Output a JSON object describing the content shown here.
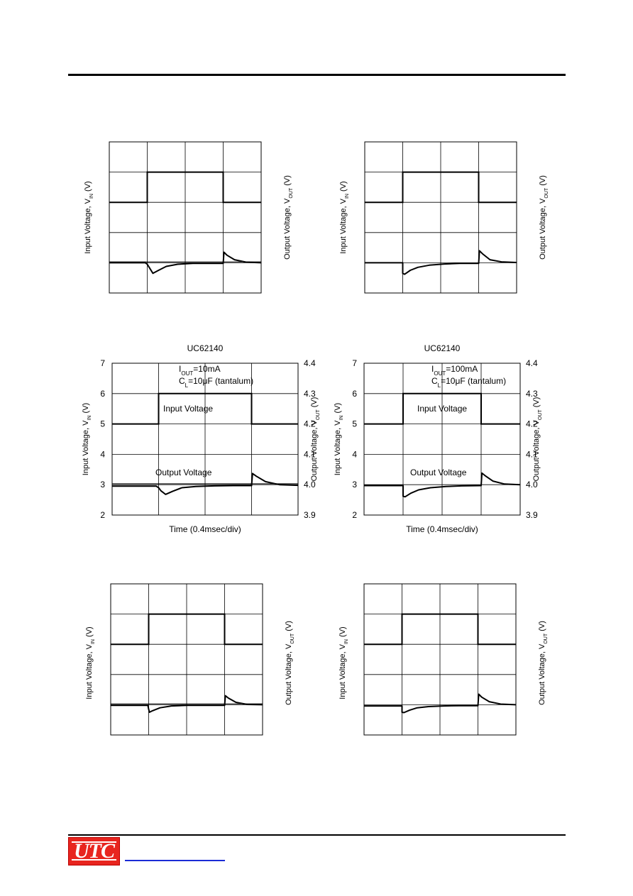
{
  "logo": {
    "text": "UTC"
  },
  "chart_data": [
    {
      "type": "line",
      "title": "",
      "subtitle": "",
      "xlabel": "",
      "ylabel_left": "Input Voltage, V",
      "ylabel_left_sub": "IN",
      "ylabel_left_tail": " (V)",
      "ylabel_right": "Output Voltage, V",
      "ylabel_right_sub": "OUT",
      "ylabel_right_tail": " (V)",
      "show_ticks": false,
      "ylim_left": [
        2,
        7
      ],
      "ylim_right": [
        3.9,
        4.4
      ],
      "x_divisions": 4,
      "grid": true,
      "input_voltage": {
        "name": "",
        "x": [
          0,
          1,
          1,
          3,
          3,
          4
        ],
        "y": [
          5,
          5,
          6,
          6,
          5,
          5
        ]
      },
      "output_voltage": {
        "name": "",
        "x": [
          0,
          0.95,
          1.0,
          1.05,
          1.15,
          1.3,
          1.5,
          1.8,
          2.2,
          2.6,
          3.0,
          3.02,
          3.1,
          3.3,
          3.6,
          4.0
        ],
        "y": [
          4.0,
          4.0,
          3.995,
          3.985,
          3.965,
          3.975,
          3.988,
          3.995,
          3.998,
          3.998,
          3.998,
          4.035,
          4.025,
          4.01,
          4.002,
          4.0
        ]
      },
      "output_baseline": 4.003
    },
    {
      "type": "line",
      "title": "",
      "subtitle": "",
      "xlabel": "",
      "ylabel_left": "Input Voltage, V",
      "ylabel_left_sub": "IN",
      "ylabel_left_tail": " (V)",
      "ylabel_right": "Output Voltage, V",
      "ylabel_right_sub": "OUT",
      "ylabel_right_tail": " (V)",
      "show_ticks": false,
      "ylim_left": [
        2,
        7
      ],
      "ylim_right": [
        3.9,
        4.4
      ],
      "x_divisions": 4,
      "grid": true,
      "input_voltage": {
        "name": "",
        "x": [
          0,
          1,
          1,
          3,
          3,
          4
        ],
        "y": [
          5,
          5,
          6,
          6,
          5,
          5
        ]
      },
      "output_voltage": {
        "name": "",
        "x": [
          0,
          1.0,
          1.0,
          1.05,
          1.2,
          1.4,
          1.7,
          2.1,
          2.5,
          3.0,
          3.02,
          3.1,
          3.3,
          3.6,
          4.0
        ],
        "y": [
          4.0,
          4.0,
          3.965,
          3.962,
          3.975,
          3.985,
          3.992,
          3.996,
          3.998,
          3.998,
          4.04,
          4.03,
          4.01,
          4.003,
          4.001
        ]
      },
      "output_baseline": null
    },
    {
      "type": "line",
      "title": "UC62140",
      "subtitle": "",
      "xlabel": "Time (0.4msec/div)",
      "ylabel_left": "Input Voltage, V",
      "ylabel_left_sub": "IN",
      "ylabel_left_tail": " (V)",
      "ylabel_right": "Output Voltage, V",
      "ylabel_right_sub": "OUT",
      "ylabel_right_tail": " (V)",
      "show_ticks": true,
      "yticks_left": [
        "2",
        "3",
        "4",
        "5",
        "6",
        "7"
      ],
      "yticks_right": [
        "3.9",
        "4.0",
        "4.1",
        "4.2",
        "4.3",
        "4.4"
      ],
      "ylim_left": [
        2,
        7
      ],
      "ylim_right": [
        3.9,
        4.4
      ],
      "x_divisions": 4,
      "grid": true,
      "annotation": {
        "line1_pre": "I",
        "line1_sub": "OUT",
        "line1_post": "=10mA",
        "line2_pre": "C",
        "line2_sub": "L",
        "line2_post": "=10μF (tantalum)"
      },
      "input_label": "Input Voltage",
      "output_label": "Output Voltage",
      "input_voltage": {
        "name": "Input Voltage",
        "x": [
          0,
          1,
          1,
          3,
          3,
          4
        ],
        "y": [
          5,
          5,
          6,
          6,
          5,
          5
        ]
      },
      "output_voltage": {
        "name": "Output Voltage",
        "x": [
          0,
          0.95,
          1.0,
          1.05,
          1.15,
          1.3,
          1.5,
          1.8,
          2.2,
          2.6,
          3.0,
          3.02,
          3.1,
          3.3,
          3.6,
          4.0
        ],
        "y": [
          3.995,
          3.995,
          3.99,
          3.98,
          3.968,
          3.978,
          3.99,
          3.994,
          3.996,
          3.997,
          3.997,
          4.037,
          4.028,
          4.01,
          4.0,
          3.998
        ]
      },
      "output_baseline": 4.003
    },
    {
      "type": "line",
      "title": "UC62140",
      "subtitle": "",
      "xlabel": "Time (0.4msec/div)",
      "ylabel_left": "Input Voltage, V",
      "ylabel_left_sub": "IN",
      "ylabel_left_tail": " (V)",
      "ylabel_right": "Output Voltage, V",
      "ylabel_right_sub": "OUT",
      "ylabel_right_tail": " (V)",
      "show_ticks": true,
      "yticks_left": [
        "2",
        "3",
        "4",
        "5",
        "6",
        "7"
      ],
      "yticks_right": [
        "3.9",
        "4.0",
        "4.1",
        "4.2",
        "4.3",
        "4.4"
      ],
      "ylim_left": [
        2,
        7
      ],
      "ylim_right": [
        3.9,
        4.4
      ],
      "x_divisions": 4,
      "grid": true,
      "annotation": {
        "line1_pre": "I",
        "line1_sub": "OUT",
        "line1_post": "=100mA",
        "line2_pre": "C",
        "line2_sub": "L",
        "line2_post": "=10μF (tantalum)"
      },
      "input_label": "Input Voltage",
      "output_label": "Output Voltage",
      "input_voltage": {
        "name": "Input Voltage",
        "x": [
          0,
          1,
          1,
          3,
          3,
          4
        ],
        "y": [
          5,
          5,
          6,
          6,
          5,
          5
        ]
      },
      "output_voltage": {
        "name": "Output Voltage",
        "x": [
          0,
          1.0,
          1.0,
          1.05,
          1.2,
          1.4,
          1.7,
          2.1,
          2.5,
          3.0,
          3.02,
          3.1,
          3.3,
          3.6,
          4.0
        ],
        "y": [
          3.997,
          3.997,
          3.962,
          3.96,
          3.972,
          3.983,
          3.99,
          3.994,
          3.996,
          3.997,
          4.038,
          4.03,
          4.012,
          4.002,
          4.0
        ]
      },
      "output_baseline": null
    },
    {
      "type": "line",
      "title": "",
      "subtitle": "",
      "xlabel": "",
      "ylabel_left": "Input Voltage, V",
      "ylabel_left_sub": "IN",
      "ylabel_left_tail": " (V)",
      "ylabel_right": "Output Voltage, V",
      "ylabel_right_sub": "OUT",
      "ylabel_right_tail": " (V)",
      "show_ticks": false,
      "ylim_left": [
        2,
        7
      ],
      "ylim_right": [
        3.9,
        4.4
      ],
      "x_divisions": 4,
      "grid": true,
      "input_voltage": {
        "name": "",
        "x": [
          0,
          1,
          1,
          3,
          3,
          4
        ],
        "y": [
          5,
          5,
          6,
          6,
          5,
          5
        ]
      },
      "output_voltage": {
        "name": "",
        "x": [
          0,
          0.98,
          1.0,
          1.02,
          1.1,
          1.3,
          1.6,
          2.0,
          2.5,
          3.0,
          3.02,
          3.1,
          3.3,
          3.6,
          4.0
        ],
        "y": [
          3.998,
          3.998,
          3.985,
          3.975,
          3.98,
          3.99,
          3.996,
          3.998,
          3.998,
          3.998,
          4.03,
          4.022,
          4.008,
          4.001,
          4.0
        ]
      },
      "output_baseline": 4.003
    },
    {
      "type": "line",
      "title": "",
      "subtitle": "",
      "xlabel": "",
      "ylabel_left": "Input Voltage, V",
      "ylabel_left_sub": "IN",
      "ylabel_left_tail": " (V)",
      "ylabel_right": "Output Voltage, V",
      "ylabel_right_sub": "OUT",
      "ylabel_right_tail": " (V)",
      "show_ticks": false,
      "ylim_left": [
        2,
        7
      ],
      "ylim_right": [
        3.9,
        4.4
      ],
      "x_divisions": 4,
      "grid": true,
      "input_voltage": {
        "name": "",
        "x": [
          0,
          1,
          1,
          3,
          3,
          4
        ],
        "y": [
          5,
          5,
          6,
          6,
          5,
          5
        ]
      },
      "output_voltage": {
        "name": "",
        "x": [
          0,
          1.0,
          1.0,
          1.05,
          1.2,
          1.4,
          1.7,
          2.1,
          2.5,
          3.0,
          3.02,
          3.1,
          3.3,
          3.6,
          4.0
        ],
        "y": [
          3.996,
          3.996,
          3.975,
          3.974,
          3.982,
          3.99,
          3.994,
          3.996,
          3.997,
          3.997,
          4.035,
          4.025,
          4.01,
          4.002,
          4.0
        ]
      },
      "output_baseline": null
    }
  ]
}
